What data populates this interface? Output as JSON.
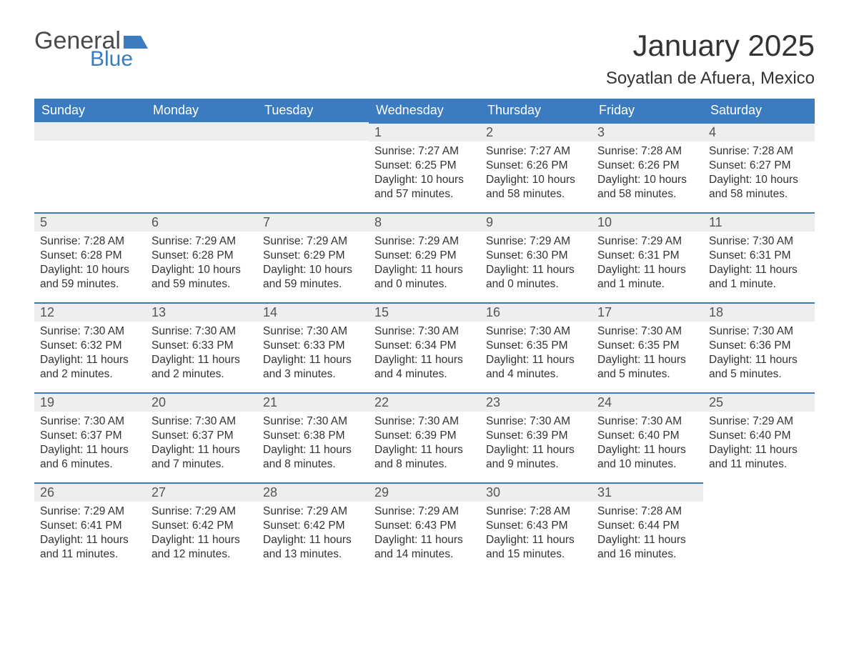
{
  "brand": {
    "word1": "General",
    "word2": "Blue",
    "word1_color": "#4a4a4a",
    "word2_color": "#3b7bbf",
    "flag_color": "#3b7bbf"
  },
  "title": "January 2025",
  "location": "Soyatlan de Afuera, Mexico",
  "colors": {
    "header_bg": "#3b7bbf",
    "header_text": "#ffffff",
    "daybar_bg": "#eeeeee",
    "daybar_border": "#3b7bbf",
    "text": "#333333",
    "page_bg": "#ffffff"
  },
  "fonts": {
    "month_title_size": 42,
    "location_size": 24,
    "dayheader_size": 18,
    "daynum_size": 18,
    "body_size": 15.5
  },
  "calendar": {
    "type": "table",
    "columns": [
      "Sunday",
      "Monday",
      "Tuesday",
      "Wednesday",
      "Thursday",
      "Friday",
      "Saturday"
    ],
    "first_day_column_index": 3,
    "days": [
      {
        "n": 1,
        "sunrise": "7:27 AM",
        "sunset": "6:25 PM",
        "daylight": "10 hours and 57 minutes."
      },
      {
        "n": 2,
        "sunrise": "7:27 AM",
        "sunset": "6:26 PM",
        "daylight": "10 hours and 58 minutes."
      },
      {
        "n": 3,
        "sunrise": "7:28 AM",
        "sunset": "6:26 PM",
        "daylight": "10 hours and 58 minutes."
      },
      {
        "n": 4,
        "sunrise": "7:28 AM",
        "sunset": "6:27 PM",
        "daylight": "10 hours and 58 minutes."
      },
      {
        "n": 5,
        "sunrise": "7:28 AM",
        "sunset": "6:28 PM",
        "daylight": "10 hours and 59 minutes."
      },
      {
        "n": 6,
        "sunrise": "7:29 AM",
        "sunset": "6:28 PM",
        "daylight": "10 hours and 59 minutes."
      },
      {
        "n": 7,
        "sunrise": "7:29 AM",
        "sunset": "6:29 PM",
        "daylight": "10 hours and 59 minutes."
      },
      {
        "n": 8,
        "sunrise": "7:29 AM",
        "sunset": "6:29 PM",
        "daylight": "11 hours and 0 minutes."
      },
      {
        "n": 9,
        "sunrise": "7:29 AM",
        "sunset": "6:30 PM",
        "daylight": "11 hours and 0 minutes."
      },
      {
        "n": 10,
        "sunrise": "7:29 AM",
        "sunset": "6:31 PM",
        "daylight": "11 hours and 1 minute."
      },
      {
        "n": 11,
        "sunrise": "7:30 AM",
        "sunset": "6:31 PM",
        "daylight": "11 hours and 1 minute."
      },
      {
        "n": 12,
        "sunrise": "7:30 AM",
        "sunset": "6:32 PM",
        "daylight": "11 hours and 2 minutes."
      },
      {
        "n": 13,
        "sunrise": "7:30 AM",
        "sunset": "6:33 PM",
        "daylight": "11 hours and 2 minutes."
      },
      {
        "n": 14,
        "sunrise": "7:30 AM",
        "sunset": "6:33 PM",
        "daylight": "11 hours and 3 minutes."
      },
      {
        "n": 15,
        "sunrise": "7:30 AM",
        "sunset": "6:34 PM",
        "daylight": "11 hours and 4 minutes."
      },
      {
        "n": 16,
        "sunrise": "7:30 AM",
        "sunset": "6:35 PM",
        "daylight": "11 hours and 4 minutes."
      },
      {
        "n": 17,
        "sunrise": "7:30 AM",
        "sunset": "6:35 PM",
        "daylight": "11 hours and 5 minutes."
      },
      {
        "n": 18,
        "sunrise": "7:30 AM",
        "sunset": "6:36 PM",
        "daylight": "11 hours and 5 minutes."
      },
      {
        "n": 19,
        "sunrise": "7:30 AM",
        "sunset": "6:37 PM",
        "daylight": "11 hours and 6 minutes."
      },
      {
        "n": 20,
        "sunrise": "7:30 AM",
        "sunset": "6:37 PM",
        "daylight": "11 hours and 7 minutes."
      },
      {
        "n": 21,
        "sunrise": "7:30 AM",
        "sunset": "6:38 PM",
        "daylight": "11 hours and 8 minutes."
      },
      {
        "n": 22,
        "sunrise": "7:30 AM",
        "sunset": "6:39 PM",
        "daylight": "11 hours and 8 minutes."
      },
      {
        "n": 23,
        "sunrise": "7:30 AM",
        "sunset": "6:39 PM",
        "daylight": "11 hours and 9 minutes."
      },
      {
        "n": 24,
        "sunrise": "7:30 AM",
        "sunset": "6:40 PM",
        "daylight": "11 hours and 10 minutes."
      },
      {
        "n": 25,
        "sunrise": "7:29 AM",
        "sunset": "6:40 PM",
        "daylight": "11 hours and 11 minutes."
      },
      {
        "n": 26,
        "sunrise": "7:29 AM",
        "sunset": "6:41 PM",
        "daylight": "11 hours and 11 minutes."
      },
      {
        "n": 27,
        "sunrise": "7:29 AM",
        "sunset": "6:42 PM",
        "daylight": "11 hours and 12 minutes."
      },
      {
        "n": 28,
        "sunrise": "7:29 AM",
        "sunset": "6:42 PM",
        "daylight": "11 hours and 13 minutes."
      },
      {
        "n": 29,
        "sunrise": "7:29 AM",
        "sunset": "6:43 PM",
        "daylight": "11 hours and 14 minutes."
      },
      {
        "n": 30,
        "sunrise": "7:28 AM",
        "sunset": "6:43 PM",
        "daylight": "11 hours and 15 minutes."
      },
      {
        "n": 31,
        "sunrise": "7:28 AM",
        "sunset": "6:44 PM",
        "daylight": "11 hours and 16 minutes."
      }
    ],
    "labels": {
      "sunrise": "Sunrise:",
      "sunset": "Sunset:",
      "daylight": "Daylight:"
    }
  }
}
